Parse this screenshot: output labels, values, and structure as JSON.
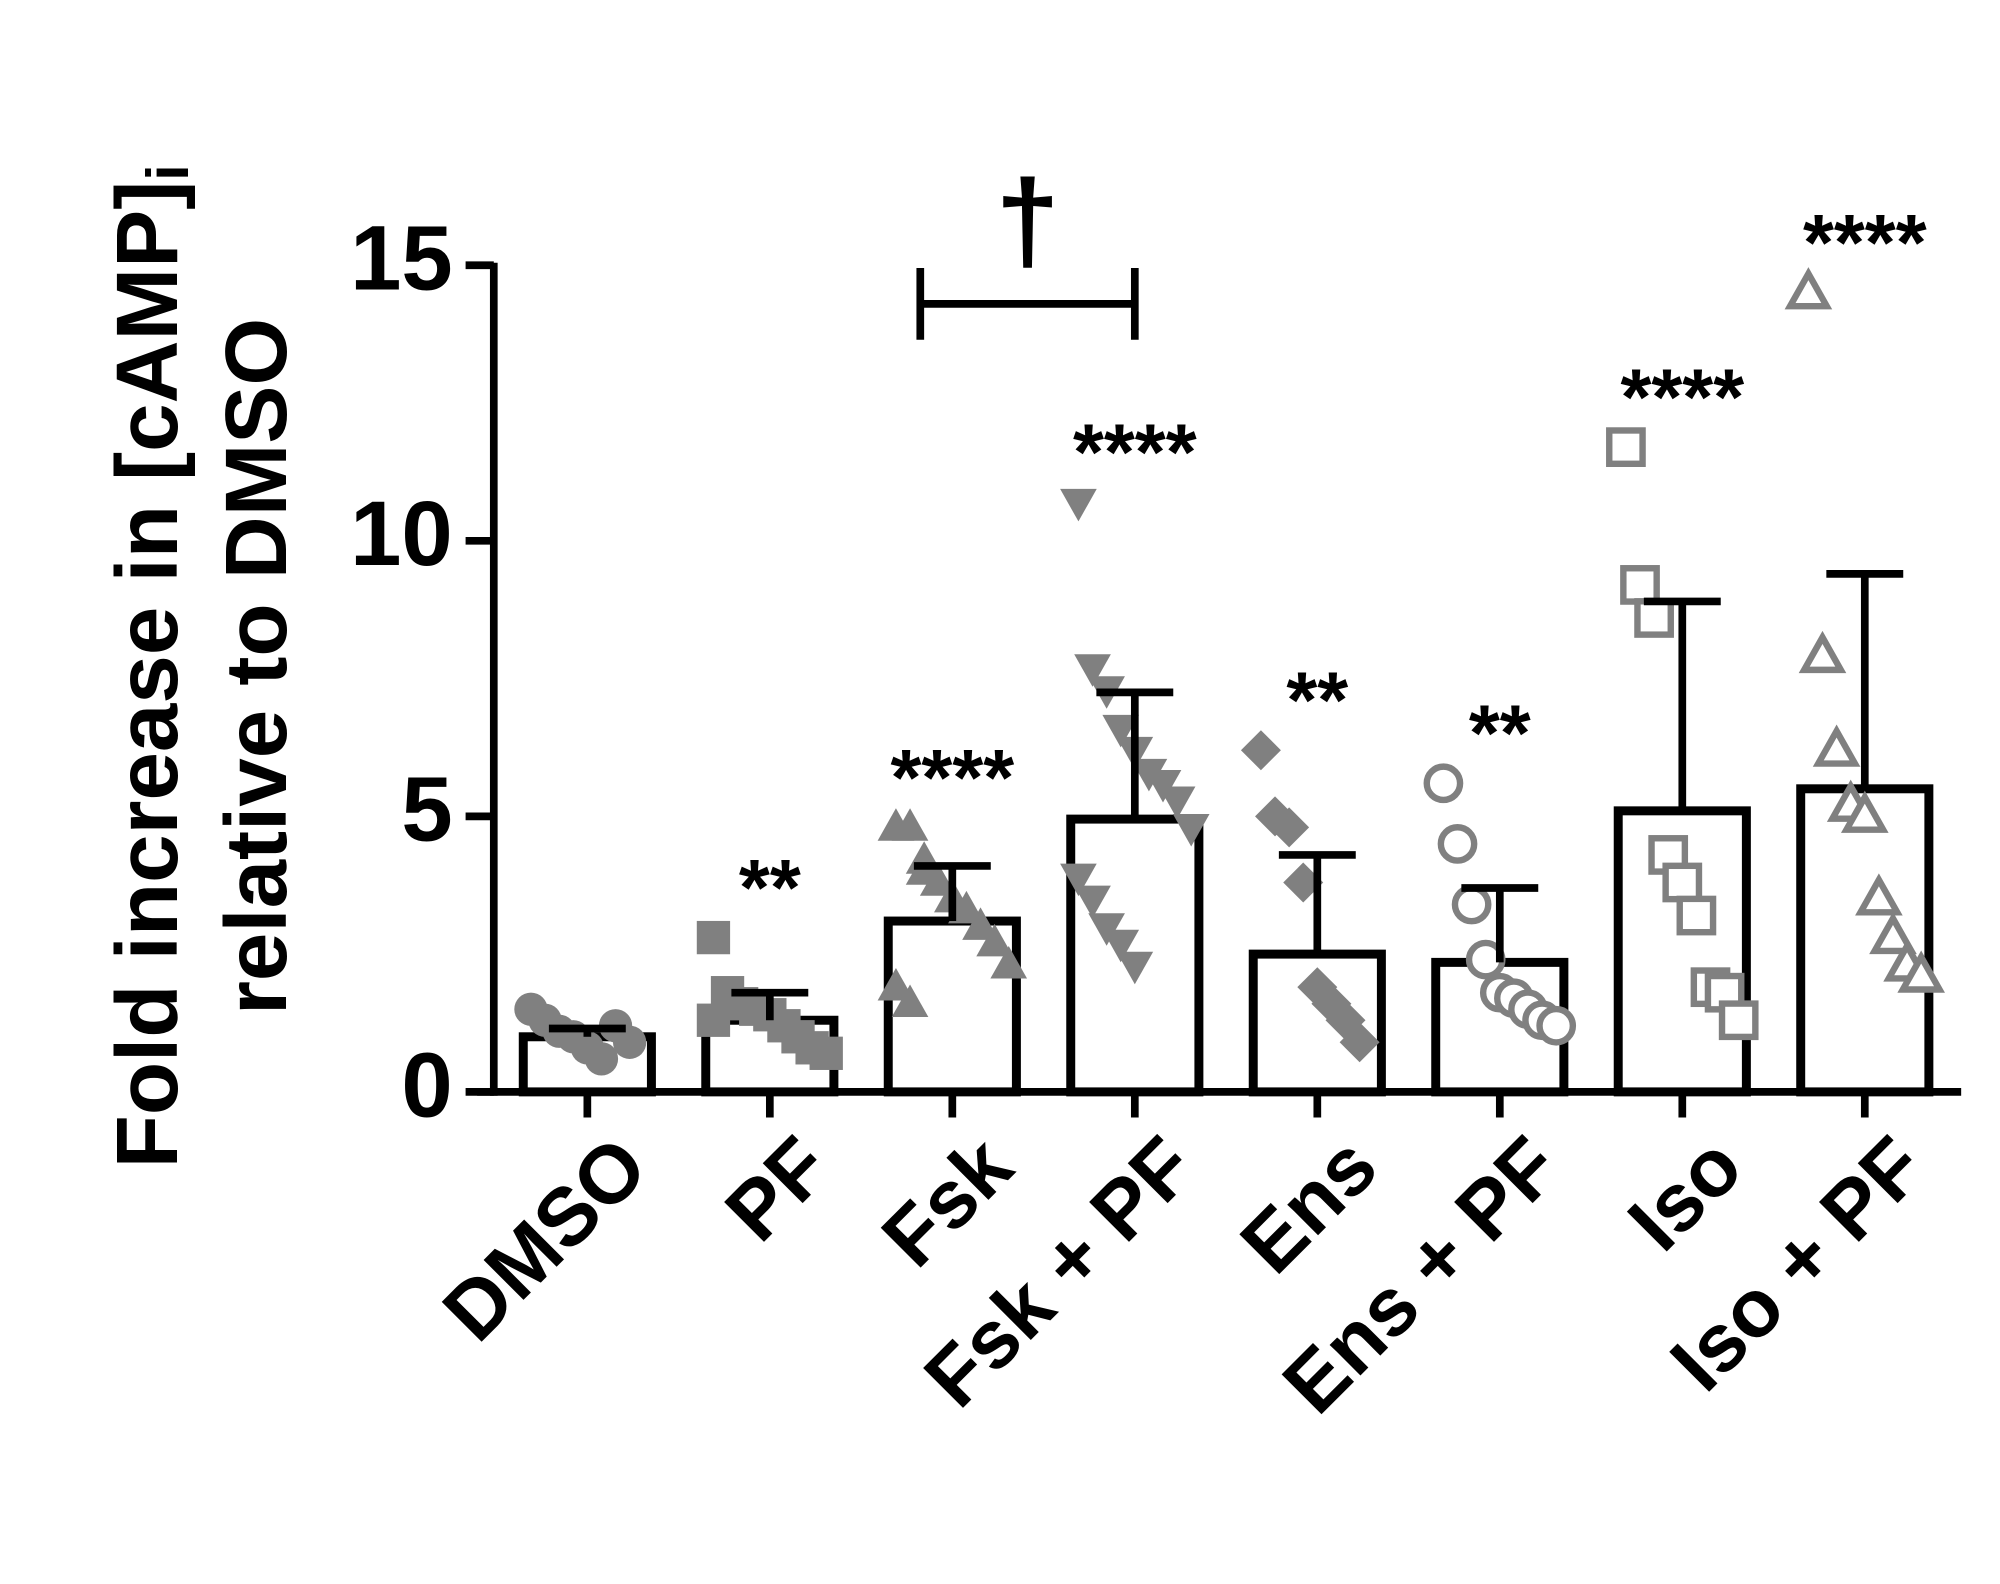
{
  "chart_data": {
    "type": "bar",
    "ylabel": "Fold increase in [cAMP]",
    "ylabel_subscript": "i",
    "ylabel_line2": "relative to DMSO",
    "categories": [
      "DMSO",
      "PF",
      "Fsk",
      "Fsk + PF",
      "Ens",
      "Ens + PF",
      "Iso",
      "Iso + PF"
    ],
    "values": [
      1.0,
      1.3,
      3.1,
      4.95,
      2.5,
      2.35,
      5.1,
      5.5
    ],
    "errors": [
      0.15,
      0.5,
      1.0,
      2.3,
      1.8,
      1.35,
      3.8,
      3.9
    ],
    "points": [
      [
        1.5,
        1.3,
        1.1,
        1.0,
        0.8,
        0.6,
        1.2,
        0.9
      ],
      [
        2.8,
        1.8,
        1.6,
        1.5,
        1.4,
        1.2,
        1.0,
        0.8,
        0.7,
        1.3
      ],
      [
        4.8,
        4.8,
        4.2,
        3.8,
        3.5,
        3.3,
        3.0,
        2.7,
        2.3,
        1.9,
        1.6,
        4.0
      ],
      [
        10.7,
        7.7,
        7.3,
        6.6,
        6.2,
        5.8,
        5.6,
        5.3,
        4.8,
        3.9,
        3.5,
        3.0,
        2.7,
        2.3
      ],
      [
        6.2,
        5.0,
        4.8,
        3.8,
        1.9,
        1.6,
        1.3,
        0.9
      ],
      [
        5.6,
        4.5,
        3.4,
        2.4,
        1.8,
        1.7,
        1.5,
        1.3,
        1.2
      ],
      [
        11.7,
        9.2,
        8.6,
        4.3,
        3.8,
        3.2,
        1.9,
        1.8,
        1.3
      ],
      [
        14.5,
        7.9,
        6.2,
        5.2,
        5.0,
        3.5,
        2.8,
        2.3,
        2.1
      ]
    ],
    "markers": [
      "circle",
      "square",
      "triangle-up",
      "triangle-down",
      "diamond",
      "circle",
      "square",
      "triangle-up"
    ],
    "filled": [
      true,
      true,
      true,
      true,
      true,
      false,
      false,
      false
    ],
    "point_color": "#808080",
    "bar_fill": "#ffffff",
    "bar_edge": "#000000",
    "significance": [
      null,
      "**",
      "****",
      "****",
      "**",
      "**",
      "****",
      "****"
    ],
    "bracket": {
      "label": "†",
      "from": 2,
      "to": 3,
      "y": 14.3
    },
    "ylim": [
      0,
      15
    ],
    "yticks": [
      0,
      5,
      10,
      15
    ]
  }
}
